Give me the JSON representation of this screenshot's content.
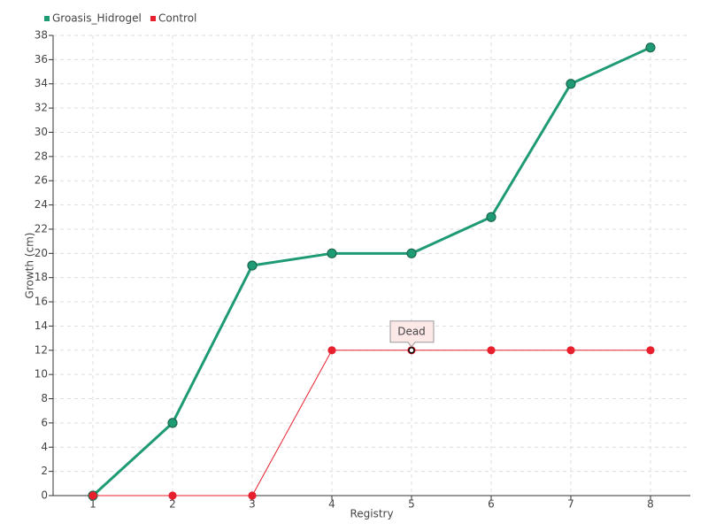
{
  "chart_data": {
    "type": "line",
    "x_label": "Registry",
    "y_label": "Growth (cm)",
    "x": [
      1,
      2,
      3,
      4,
      5,
      6,
      7,
      8
    ],
    "series": [
      {
        "name": "Groasis_Hidrogel",
        "color": "#1e9a74",
        "values": [
          0,
          6,
          19,
          20,
          20,
          23,
          34,
          37
        ]
      },
      {
        "name": "Control",
        "color": "#e8202e",
        "values": [
          0,
          0,
          0,
          12,
          12,
          12,
          12,
          12
        ]
      }
    ],
    "annotations": [
      {
        "text": "Dead",
        "x": 5,
        "y": 12
      }
    ],
    "xlim": [
      0.5,
      8.5
    ],
    "xticks": [
      1,
      2,
      3,
      4,
      5,
      6,
      7,
      8
    ],
    "ylim": [
      0,
      38
    ],
    "yticks": [
      0,
      2,
      4,
      6,
      8,
      10,
      12,
      14,
      16,
      18,
      20,
      22,
      24,
      26,
      28,
      30,
      32,
      34,
      36,
      38
    ],
    "grid": true,
    "legend": "top-left"
  }
}
